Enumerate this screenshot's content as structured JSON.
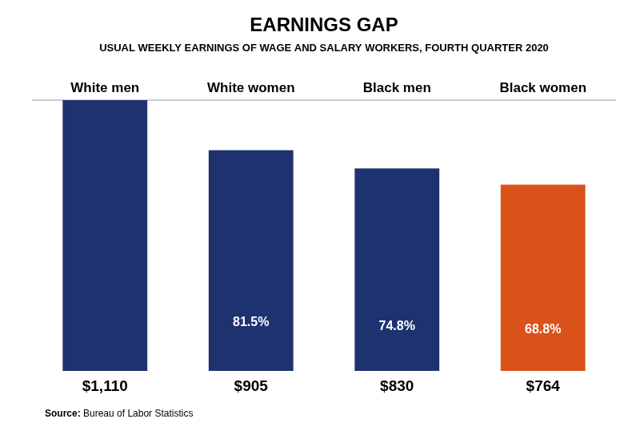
{
  "chart_data": {
    "type": "bar",
    "title": "EARNINGS GAP",
    "subtitle": "USUAL WEEKLY EARNINGS OF WAGE AND SALARY WORKERS, FOURTH QUARTER 2020",
    "categories": [
      "White men",
      "White women",
      "Black men",
      "Black women"
    ],
    "values": [
      1110,
      905,
      830,
      764
    ],
    "colors": [
      "#1F3270",
      "#1F3270",
      "#1F3270",
      "#D9521A"
    ],
    "data_labels": true,
    "value_labels": [
      "$1,110",
      "$905",
      "$830",
      "$764"
    ],
    "percent_labels": [
      null,
      "81.5%",
      "74.8%",
      "68.8%"
    ],
    "reference_line": {
      "y": 1110,
      "color": "#999999"
    },
    "source_label": "Source:",
    "source": "Bureau of Labor Statistics",
    "ylim": [
      0,
      1250
    ],
    "grid": false,
    "legend": false,
    "tick_labels": false
  }
}
